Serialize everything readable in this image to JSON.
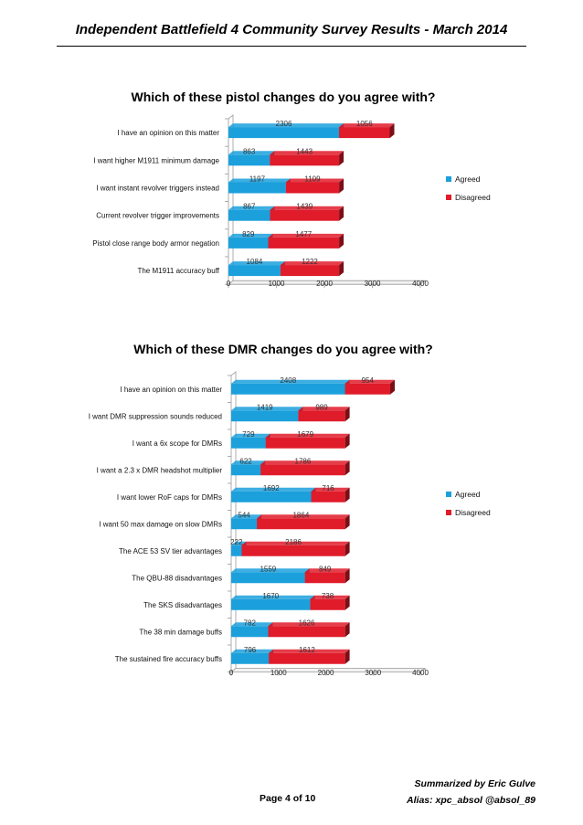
{
  "document": {
    "header": "Independent Battlefield 4 Community Survey Results - March 2014",
    "page_label": "Page 4 of 10",
    "summarized_by": "Summarized by Eric Gulve",
    "alias": "Alias: xpc_absol @absol_89"
  },
  "colors": {
    "agreed": "#1ba0dc",
    "disagreed": "#e01b2a"
  },
  "chart_data": [
    {
      "type": "bar",
      "orientation": "horizontal",
      "stacked": true,
      "title": "Which of these pistol changes do you agree with?",
      "categories": [
        "I have an opinion on this matter",
        "I want higher M1911 minimum damage",
        "I want instant revolver triggers instead",
        "Current revolver trigger improvements",
        "Pistol close range body armor negation",
        "The M1911 accuracy buff"
      ],
      "series": [
        {
          "name": "Agreed",
          "values": [
            2306,
            863,
            1197,
            867,
            829,
            1084
          ]
        },
        {
          "name": "Disagreed",
          "values": [
            1056,
            1443,
            1109,
            1439,
            1477,
            1222
          ]
        }
      ],
      "xlim": [
        0,
        4000
      ],
      "xticks": [
        "0",
        "1000",
        "2000",
        "3000",
        "4000"
      ],
      "legend": "right",
      "grid": false
    },
    {
      "type": "bar",
      "orientation": "horizontal",
      "stacked": true,
      "title": "Which of these DMR changes do you agree with?",
      "categories": [
        "I have an opinion on this matter",
        "I want DMR suppression sounds reduced",
        "I want a 6x scope for DMRs",
        "I want a 2.3 x DMR headshot multiplier",
        "I want lower RoF caps for DMRs",
        "I want 50 max damage on slow DMRs",
        "The ACE 53 SV tier advantages",
        "The QBU-88 disadvantages",
        "The SKS disadvantages",
        "The 38 min damage buffs",
        "The sustained fire accuracy buffs"
      ],
      "series": [
        {
          "name": "Agreed",
          "values": [
            2408,
            1419,
            729,
            622,
            1692,
            544,
            222,
            1559,
            1670,
            782,
            796
          ]
        },
        {
          "name": "Disagreed",
          "values": [
            954,
            989,
            1679,
            1786,
            716,
            1864,
            2186,
            849,
            738,
            1626,
            1612
          ]
        }
      ],
      "xlim": [
        0,
        4000
      ],
      "xticks": [
        "0",
        "1000",
        "2000",
        "3000",
        "4000"
      ],
      "legend": "right",
      "grid": false
    }
  ]
}
